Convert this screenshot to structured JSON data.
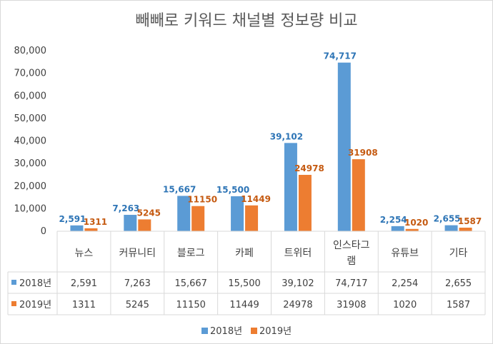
{
  "chart_data": {
    "type": "bar",
    "title": "빼빼로 키워드 채널별 정보량 비교",
    "categories": [
      [
        "뉴스"
      ],
      [
        "커뮤니티"
      ],
      [
        "블로그"
      ],
      [
        "카페"
      ],
      [
        "트위터"
      ],
      [
        "인스타그",
        "램"
      ],
      [
        "유튜브"
      ],
      [
        "기타"
      ]
    ],
    "series": [
      {
        "name": "2018년",
        "color": "#5b9bd5",
        "label_color": "#2e75b6",
        "values": [
          2591,
          7263,
          15667,
          15500,
          39102,
          74717,
          2254,
          2655
        ],
        "labels": [
          "2,591",
          "7,263",
          "15,667",
          "15,500",
          "39,102",
          "74,717",
          "2,254",
          "2,655"
        ]
      },
      {
        "name": "2019년",
        "color": "#ed7d31",
        "label_color": "#c55a11",
        "values": [
          1311,
          5245,
          11150,
          11449,
          24978,
          31908,
          1020,
          1587
        ],
        "labels": [
          "1311",
          "5245",
          "11150",
          "11449",
          "24978",
          "31908",
          "1020",
          "1587"
        ]
      }
    ],
    "ylim": [
      0,
      80000
    ],
    "yticks": [
      0,
      10000,
      20000,
      30000,
      40000,
      50000,
      60000,
      70000,
      80000
    ],
    "ytick_labels": [
      "0",
      "10,000",
      "20,000",
      "30,000",
      "40,000",
      "50,000",
      "60,000",
      "70,000",
      "80,000"
    ],
    "xlabel": "",
    "ylabel": "",
    "grid": false,
    "legend": "bottom",
    "data_table": true
  }
}
